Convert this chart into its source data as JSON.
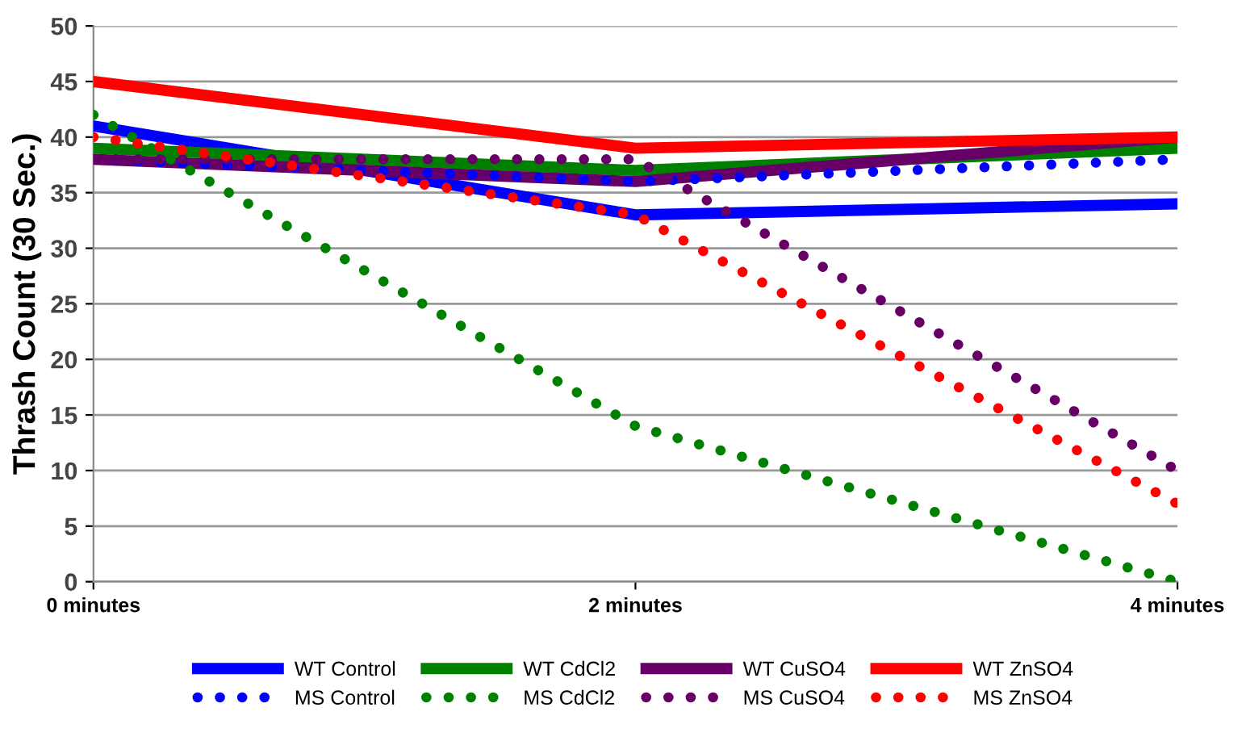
{
  "chart_data": {
    "type": "line",
    "ylabel": "Thrash Count (30 Sec.)",
    "categories": [
      "0 minutes",
      "2 minutes",
      "4 minutes"
    ],
    "series": [
      {
        "name": "WT Control",
        "color": "#0000ff",
        "line_style": "solid",
        "values": [
          41,
          33,
          34
        ]
      },
      {
        "name": "WT CdCl2",
        "color": "#008000",
        "line_style": "solid",
        "values": [
          39,
          37,
          39
        ]
      },
      {
        "name": "WT CuSO4",
        "color": "#660066",
        "line_style": "solid",
        "values": [
          38,
          36,
          40
        ]
      },
      {
        "name": "WT ZnSO4",
        "color": "#ff0000",
        "line_style": "solid",
        "values": [
          45,
          39,
          40
        ]
      },
      {
        "name": "MS Control",
        "color": "#0000ff",
        "line_style": "dotted",
        "values": [
          38,
          36,
          38
        ]
      },
      {
        "name": "MS CdCl2",
        "color": "#008000",
        "line_style": "dotted",
        "values": [
          42,
          14,
          0
        ]
      },
      {
        "name": "MS CuSO4",
        "color": "#660066",
        "line_style": "dotted",
        "values": [
          38,
          38,
          10
        ]
      },
      {
        "name": "MS ZnSO4",
        "color": "#ff0000",
        "line_style": "dotted",
        "values": [
          40,
          33,
          7
        ]
      }
    ],
    "ylim": [
      0,
      50
    ],
    "yticks": [
      0,
      5,
      10,
      15,
      20,
      25,
      30,
      35,
      40,
      45,
      50
    ],
    "grid": "y",
    "legend": "bottom"
  }
}
